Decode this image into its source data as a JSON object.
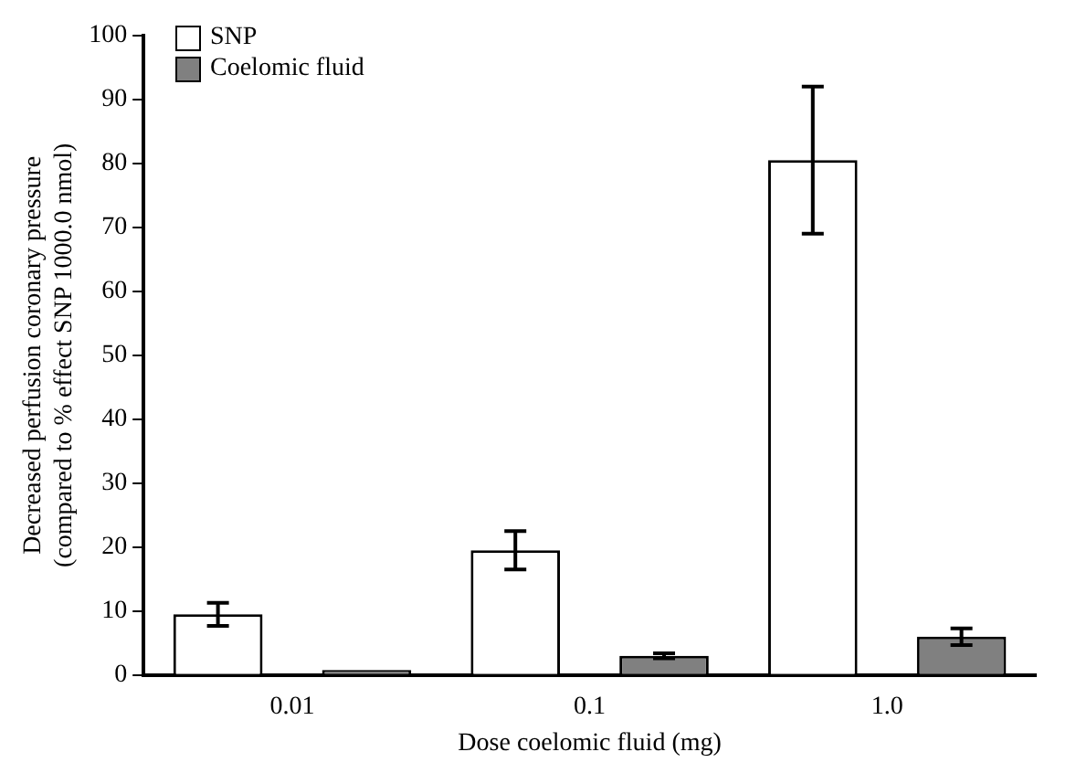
{
  "chart_data": {
    "type": "bar",
    "xlabel": "Dose coelomic fluid (mg)",
    "ylabel": "Decreased perfusion coronary pressure\n(compared to % effect SNP 1000.0 nmol)",
    "categories": [
      "0.01",
      "0.1",
      "1.0"
    ],
    "series": [
      {
        "name": "SNP",
        "color": "#ffffff",
        "values": [
          9.5,
          19.5,
          80.5
        ],
        "errors": [
          1.8,
          3,
          11.5
        ]
      },
      {
        "name": "Coelomic fluid",
        "color": "#808080",
        "values": [
          0.8,
          3,
          6
        ],
        "errors": [
          null,
          0.4,
          1.3
        ]
      }
    ],
    "ylim": [
      0,
      100
    ],
    "yticks": [
      0,
      10,
      20,
      30,
      40,
      50,
      60,
      70,
      80,
      90,
      100
    ],
    "grid": false,
    "legend": "top left"
  }
}
